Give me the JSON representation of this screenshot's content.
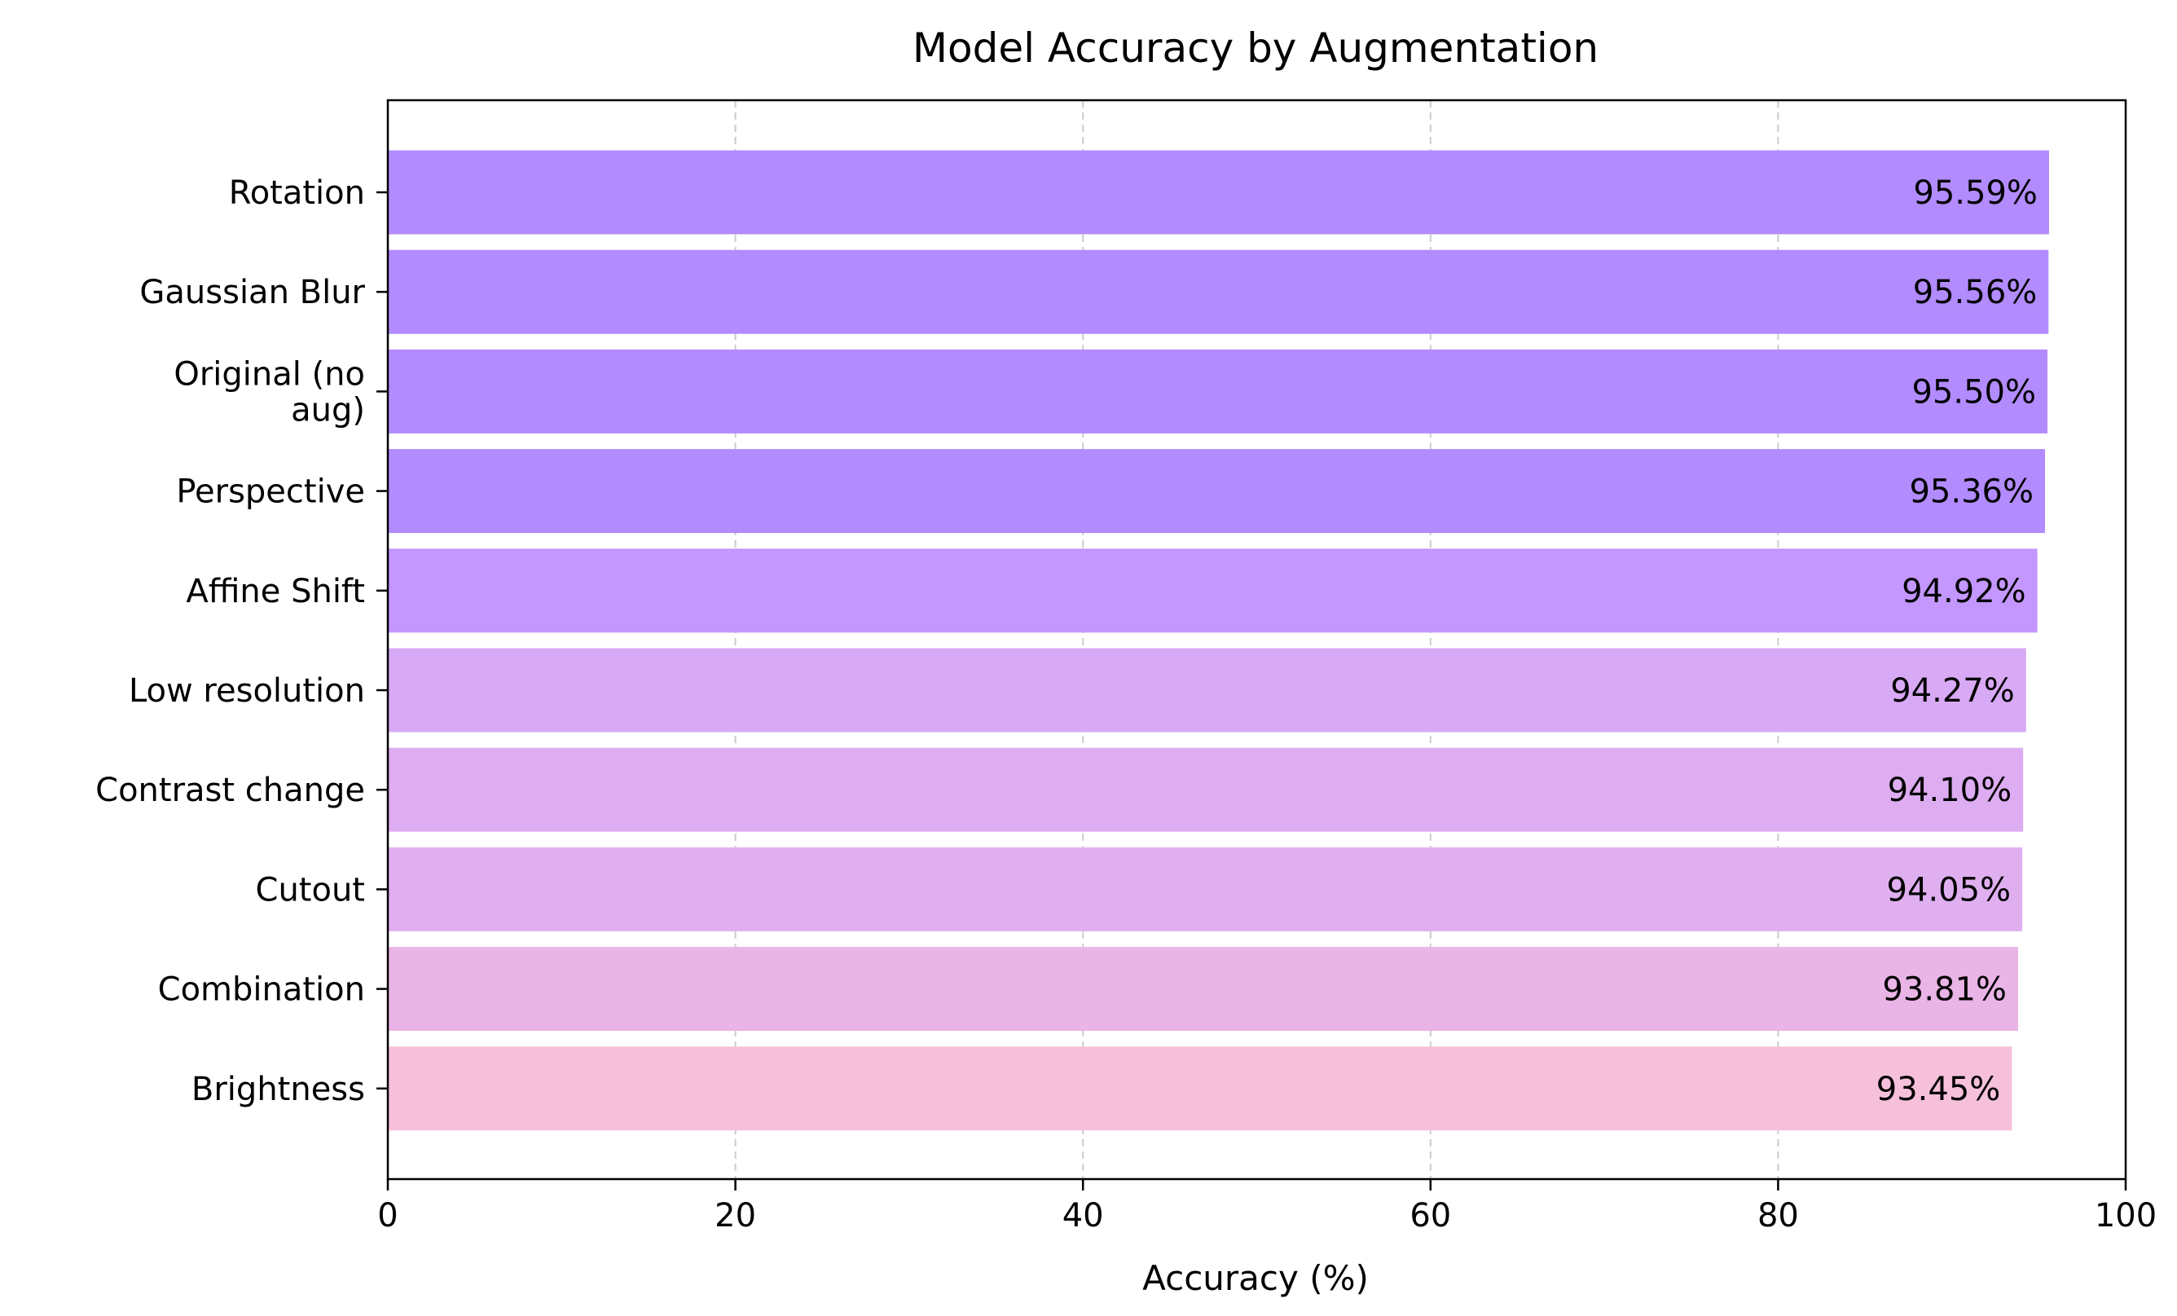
{
  "chart_data": {
    "type": "bar",
    "orientation": "horizontal",
    "title": "Model Accuracy by Augmentation",
    "xlabel": "Accuracy (%)",
    "ylabel": "",
    "xlim": [
      0,
      100
    ],
    "xticks": [
      0,
      20,
      40,
      60,
      80,
      100
    ],
    "grid": "x-axis, dashed",
    "categories": [
      "Rotation",
      "Gaussian Blur",
      "Original (no aug)",
      "Perspective",
      "Affine Shift",
      "Low resolution",
      "Contrast change",
      "Cutout",
      "Combination",
      "Brightness"
    ],
    "category_lines": [
      [
        "Rotation"
      ],
      [
        "Gaussian Blur"
      ],
      [
        "Original (no",
        "aug)"
      ],
      [
        "Perspective"
      ],
      [
        "Affine Shift"
      ],
      [
        "Low resolution"
      ],
      [
        "Contrast change"
      ],
      [
        "Cutout"
      ],
      [
        "Combination"
      ],
      [
        "Brightness"
      ]
    ],
    "values": [
      95.59,
      95.56,
      95.5,
      95.36,
      94.92,
      94.27,
      94.1,
      94.05,
      93.81,
      93.45
    ],
    "value_labels": [
      "95.59%",
      "95.56%",
      "95.50%",
      "95.36%",
      "94.92%",
      "94.27%",
      "94.10%",
      "94.05%",
      "93.81%",
      "93.45%"
    ],
    "colors": [
      "#b28bff",
      "#b28bff",
      "#b28bff",
      "#b28bff",
      "#c497ff",
      "#d8a9f5",
      "#ddacf1",
      "#dfaff0",
      "#e9b4e6",
      "#f6c0db"
    ]
  }
}
